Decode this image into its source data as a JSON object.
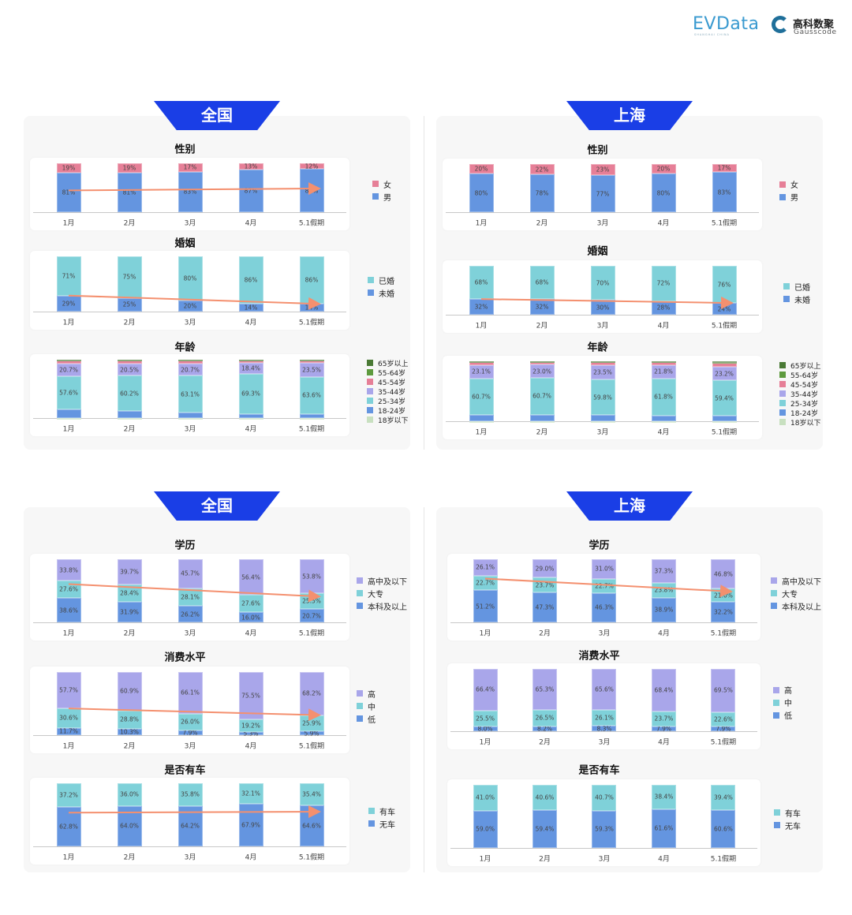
{
  "logos": {
    "evdata": "EVData",
    "evdata_sub": "SHANGHAI CHINA",
    "gauss_cn": "高科数聚",
    "gauss_en": "Gausscode"
  },
  "panels": [
    {
      "title": "全国"
    },
    {
      "title": "上海"
    },
    {
      "title": "全国"
    },
    {
      "title": "上海"
    }
  ],
  "colors": {
    "banner": "#1a3ee6",
    "trend_arrow": "#f4906f"
  },
  "chart_data": [
    {
      "region": "全国",
      "title": "性别",
      "type": "bar",
      "stacked": true,
      "decimals": 0,
      "trend_arrow": true,
      "categories": [
        "1月",
        "2月",
        "3月",
        "4月",
        "5.1假期"
      ],
      "series": [
        {
          "name": "男",
          "color": "#6495e0",
          "values": [
            81,
            81,
            83,
            87,
            88
          ]
        },
        {
          "name": "女",
          "color": "#e67f97",
          "values": [
            19,
            19,
            17,
            13,
            12
          ]
        }
      ]
    },
    {
      "region": "全国",
      "title": "婚姻",
      "type": "bar",
      "stacked": true,
      "decimals": 0,
      "trend_arrow": true,
      "categories": [
        "1月",
        "2月",
        "3月",
        "4月",
        "5.1假期"
      ],
      "series": [
        {
          "name": "未婚",
          "color": "#6495e0",
          "values": [
            29,
            25,
            20,
            14,
            14
          ]
        },
        {
          "name": "已婚",
          "color": "#7fd1d9",
          "values": [
            71,
            75,
            80,
            86,
            86
          ]
        }
      ]
    },
    {
      "region": "全国",
      "title": "年龄",
      "type": "bar",
      "stacked": true,
      "decimals": 1,
      "trend_arrow": false,
      "labeled_series": [
        "25-34岁",
        "35-44岁"
      ],
      "categories": [
        "1月",
        "2月",
        "3月",
        "4月",
        "5.1假期"
      ],
      "series": [
        {
          "name": "18岁以下",
          "color": "#c8e0c0",
          "values": [
            0.1,
            0.1,
            0.1,
            0.1,
            0.1
          ]
        },
        {
          "name": "18-24岁",
          "color": "#6495e0",
          "values": [
            14.5,
            12.0,
            9.5,
            6.5,
            7.0
          ]
        },
        {
          "name": "25-34岁",
          "color": "#7fd1d9",
          "values": [
            57.6,
            60.2,
            63.1,
            69.3,
            63.6
          ]
        },
        {
          "name": "35-44岁",
          "color": "#a9a6ea",
          "values": [
            20.7,
            20.5,
            20.7,
            18.4,
            23.5
          ]
        },
        {
          "name": "45-54岁",
          "color": "#e67f97",
          "values": [
            6.0,
            6.5,
            6.0,
            4.5,
            4.5
          ]
        },
        {
          "name": "55-64岁",
          "color": "#5e9a3e",
          "values": [
            0.8,
            0.5,
            0.5,
            0.9,
            1.0
          ]
        },
        {
          "name": "65岁以上",
          "color": "#4a7a35",
          "values": [
            0.3,
            0.2,
            0.1,
            0.3,
            0.3
          ]
        }
      ]
    },
    {
      "region": "上海",
      "title": "性别",
      "type": "bar",
      "stacked": true,
      "decimals": 0,
      "trend_arrow": false,
      "categories": [
        "1月",
        "2月",
        "3月",
        "4月",
        "5.1假期"
      ],
      "series": [
        {
          "name": "男",
          "color": "#6495e0",
          "values": [
            80,
            78,
            77,
            80,
            83
          ]
        },
        {
          "name": "女",
          "color": "#e67f97",
          "values": [
            20,
            22,
            23,
            20,
            17
          ]
        }
      ]
    },
    {
      "region": "上海",
      "title": "婚姻",
      "type": "bar",
      "stacked": true,
      "decimals": 0,
      "trend_arrow": true,
      "categories": [
        "1月",
        "2月",
        "3月",
        "4月",
        "5.1假期"
      ],
      "series": [
        {
          "name": "未婚",
          "color": "#6495e0",
          "values": [
            32,
            32,
            30,
            28,
            24
          ]
        },
        {
          "name": "已婚",
          "color": "#7fd1d9",
          "values": [
            68,
            68,
            70,
            72,
            76
          ]
        }
      ]
    },
    {
      "region": "上海",
      "title": "年龄",
      "type": "bar",
      "stacked": true,
      "decimals": 1,
      "trend_arrow": false,
      "labeled_series": [
        "25-34岁",
        "35-44岁"
      ],
      "categories": [
        "1月",
        "2月",
        "3月",
        "4月",
        "5.1假期"
      ],
      "series": [
        {
          "name": "18岁以下",
          "color": "#c8e0c0",
          "values": [
            0.1,
            0.1,
            0.1,
            0.1,
            0.1
          ]
        },
        {
          "name": "18-24岁",
          "color": "#6495e0",
          "values": [
            10.0,
            11.0,
            10.0,
            9.5,
            8.5
          ]
        },
        {
          "name": "25-34岁",
          "color": "#7fd1d9",
          "values": [
            60.7,
            60.7,
            59.8,
            61.8,
            59.4
          ]
        },
        {
          "name": "35-44岁",
          "color": "#a9a6ea",
          "values": [
            23.1,
            23.0,
            23.5,
            21.8,
            23.2
          ]
        },
        {
          "name": "45-54岁",
          "color": "#e67f97",
          "values": [
            5.5,
            4.5,
            5.5,
            5.5,
            6.5
          ]
        },
        {
          "name": "55-64岁",
          "color": "#5e9a3e",
          "values": [
            0.4,
            0.5,
            0.8,
            1.0,
            1.5
          ]
        },
        {
          "name": "65岁以上",
          "color": "#4a7a35",
          "values": [
            0.2,
            0.2,
            0.3,
            0.3,
            0.8
          ]
        }
      ]
    },
    {
      "region": "全国",
      "title": "学历",
      "type": "bar",
      "stacked": true,
      "decimals": 1,
      "trend_arrow": true,
      "categories": [
        "1月",
        "2月",
        "3月",
        "4月",
        "5.1假期"
      ],
      "series": [
        {
          "name": "本科及以上",
          "color": "#6495e0",
          "values": [
            38.6,
            31.9,
            26.2,
            16.0,
            20.7
          ]
        },
        {
          "name": "大专",
          "color": "#7fd1d9",
          "values": [
            27.6,
            28.4,
            28.1,
            27.6,
            25.5
          ]
        },
        {
          "name": "高中及以下",
          "color": "#a9a6ea",
          "values": [
            33.8,
            39.7,
            45.7,
            56.4,
            53.8
          ]
        }
      ]
    },
    {
      "region": "全国",
      "title": "消费水平",
      "type": "bar",
      "stacked": true,
      "decimals": 1,
      "trend_arrow": true,
      "categories": [
        "1月",
        "2月",
        "3月",
        "4月",
        "5.1假期"
      ],
      "series": [
        {
          "name": "低",
          "color": "#6495e0",
          "values": [
            11.7,
            10.3,
            7.9,
            5.3,
            5.9
          ]
        },
        {
          "name": "中",
          "color": "#7fd1d9",
          "values": [
            30.6,
            28.8,
            26.0,
            19.2,
            25.9
          ]
        },
        {
          "name": "高",
          "color": "#a9a6ea",
          "values": [
            57.7,
            60.9,
            66.1,
            75.5,
            68.2
          ]
        }
      ]
    },
    {
      "region": "全国",
      "title": "是否有车",
      "type": "bar",
      "stacked": true,
      "decimals": 1,
      "trend_arrow": true,
      "categories": [
        "1月",
        "2月",
        "3月",
        "4月",
        "5.1假期"
      ],
      "series": [
        {
          "name": "无车",
          "color": "#6495e0",
          "values": [
            62.8,
            64.0,
            64.2,
            67.9,
            64.6
          ]
        },
        {
          "name": "有车",
          "color": "#7fd1d9",
          "values": [
            37.2,
            36.0,
            35.8,
            32.1,
            35.4
          ]
        }
      ]
    },
    {
      "region": "上海",
      "title": "学历",
      "type": "bar",
      "stacked": true,
      "decimals": 1,
      "trend_arrow": true,
      "categories": [
        "1月",
        "2月",
        "3月",
        "4月",
        "5.1假期"
      ],
      "series": [
        {
          "name": "本科及以上",
          "color": "#6495e0",
          "values": [
            51.2,
            47.3,
            46.3,
            38.9,
            32.2
          ]
        },
        {
          "name": "大专",
          "color": "#7fd1d9",
          "values": [
            22.7,
            23.7,
            22.7,
            23.8,
            21.0
          ]
        },
        {
          "name": "高中及以下",
          "color": "#a9a6ea",
          "values": [
            26.1,
            29.0,
            31.0,
            37.3,
            46.8
          ]
        }
      ]
    },
    {
      "region": "上海",
      "title": "消费水平",
      "type": "bar",
      "stacked": true,
      "decimals": 1,
      "trend_arrow": false,
      "categories": [
        "1月",
        "2月",
        "3月",
        "4月",
        "5.1假期"
      ],
      "series": [
        {
          "name": "低",
          "color": "#6495e0",
          "values": [
            8.0,
            8.2,
            8.3,
            7.9,
            7.9
          ]
        },
        {
          "name": "中",
          "color": "#7fd1d9",
          "values": [
            25.5,
            26.5,
            26.1,
            23.7,
            22.6
          ]
        },
        {
          "name": "高",
          "color": "#a9a6ea",
          "values": [
            66.4,
            65.3,
            65.6,
            68.4,
            69.5
          ]
        }
      ]
    },
    {
      "region": "上海",
      "title": "是否有车",
      "type": "bar",
      "stacked": true,
      "decimals": 1,
      "trend_arrow": false,
      "categories": [
        "1月",
        "2月",
        "3月",
        "4月",
        "5.1假期"
      ],
      "series": [
        {
          "name": "无车",
          "color": "#6495e0",
          "values": [
            59.0,
            59.4,
            59.3,
            61.6,
            60.6
          ]
        },
        {
          "name": "有车",
          "color": "#7fd1d9",
          "values": [
            41.0,
            40.6,
            40.7,
            38.4,
            39.4
          ]
        }
      ]
    }
  ]
}
